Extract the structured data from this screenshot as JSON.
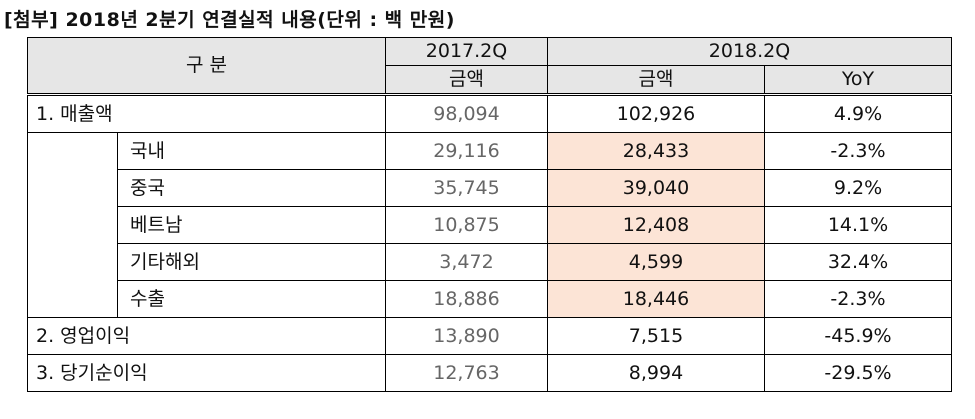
{
  "title": "[첨부] 2018년 2분기 연결실적 내용(단위 : 백 만원)",
  "header": {
    "gubun": "구 분",
    "period_prev": "2017.2Q",
    "period_curr": "2018.2Q",
    "col_amount_prev": "금액",
    "col_amount_curr": "금액",
    "col_yoy": "YoY"
  },
  "rows": [
    {
      "label": "1. 매출액",
      "prev": "98,094",
      "curr": "102,926",
      "yoy": "4.9%"
    },
    {
      "label": "국내",
      "prev": "29,116",
      "curr": "28,433",
      "yoy": "-2.3%"
    },
    {
      "label": "중국",
      "prev": "35,745",
      "curr": "39,040",
      "yoy": "9.2%"
    },
    {
      "label": "베트남",
      "prev": "10,875",
      "curr": "12,408",
      "yoy": "14.1%"
    },
    {
      "label": "기타해외",
      "prev": "3,472",
      "curr": "4,599",
      "yoy": "32.4%"
    },
    {
      "label": "수출",
      "prev": "18,886",
      "curr": "18,446",
      "yoy": "-2.3%"
    },
    {
      "label": "2. 영업이익",
      "prev": "13,890",
      "curr": "7,515",
      "yoy": "-45.9%"
    },
    {
      "label": "3. 당기순이익",
      "prev": "12,763",
      "curr": "8,994",
      "yoy": "-29.5%"
    }
  ],
  "colors": {
    "highlight": "#fce4d6",
    "header_bg": "#e6e6e6",
    "prev_text": "#666666"
  }
}
